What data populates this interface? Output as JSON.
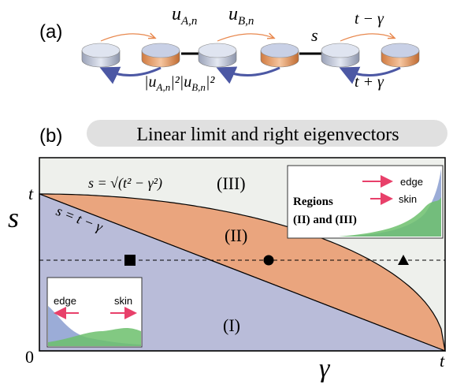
{
  "panel_a": {
    "label": "(a)",
    "uA": {
      "base": "u",
      "sub": "A,n"
    },
    "uB": {
      "base": "u",
      "sub": "B,n"
    },
    "coupling": "s",
    "hop_forward": "t − γ",
    "hop_backward": "t + γ",
    "norm_A": {
      "pre": "|u",
      "sub": "A,n",
      "post": "|²"
    },
    "norm_B": {
      "pre": "|u",
      "sub": "B,n",
      "post": "|²"
    }
  },
  "panel_b": {
    "label": "(b)",
    "title": "Linear limit and right eigenvectors",
    "y_axis_label": "s",
    "x_axis_label": "γ",
    "y_top_label": "t",
    "origin_label": "0",
    "x_right_label": "t",
    "curve_label": "s = √(t² − γ²)",
    "line_label": "s = t − γ",
    "regions": [
      "(III)",
      "(II)",
      "(I)"
    ],
    "inset_right": {
      "title": "Regions",
      "subtitle": "(II) and (III)",
      "edge": "edge",
      "skin": "skin"
    },
    "inset_left": {
      "edge": "edge",
      "skin": "skin"
    }
  }
}
